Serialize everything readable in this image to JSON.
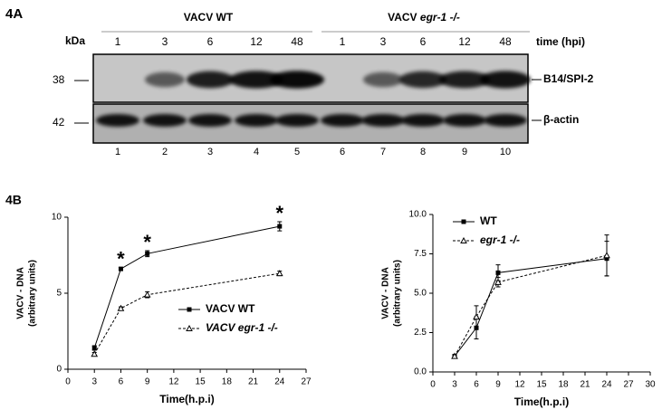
{
  "figure_a": {
    "panel": "4A",
    "kda_label": "kDa",
    "groups": [
      {
        "prefix": "VACV WT"
      },
      {
        "prefix": "VACV",
        "italic": "egr-1 -/-"
      }
    ],
    "times": [
      "1",
      "3",
      "6",
      "12",
      "48",
      "1",
      "3",
      "6",
      "12",
      "48"
    ],
    "time_label": "time (hpi)",
    "markers": [
      "38",
      "42"
    ],
    "bands": [
      "B14/SPI-2",
      "β-actin"
    ],
    "lanes": [
      "1",
      "2",
      "3",
      "4",
      "5",
      "6",
      "7",
      "8",
      "9",
      "10"
    ]
  },
  "panel_b": "4B",
  "chart_data": [
    {
      "type": "line",
      "xlabel": "Time(h.p.i)",
      "ylabel": [
        "VACV - DNA",
        "(arbitrary units)"
      ],
      "x": [
        3,
        6,
        9,
        24
      ],
      "xlim": [
        0,
        27
      ],
      "xticks": [
        0,
        3,
        6,
        9,
        12,
        15,
        18,
        21,
        24,
        27
      ],
      "ylim": [
        0,
        10
      ],
      "yticks": [
        0,
        5,
        10
      ],
      "legend": "center right",
      "series": [
        {
          "name": "VACV WT",
          "color": "#000000",
          "marker": "square",
          "dash": false,
          "values": [
            1.4,
            6.6,
            7.6,
            9.4
          ],
          "errors": [
            0.15,
            0.1,
            0.2,
            0.3
          ]
        },
        {
          "name": "VACV egr-1 -/-",
          "color": "#000000",
          "marker": "triangle",
          "dash": true,
          "values": [
            1.0,
            4.0,
            4.9,
            6.3
          ],
          "errors": [
            0.1,
            0.1,
            0.2,
            0.15
          ]
        }
      ],
      "annotations": [
        {
          "text": "*",
          "x": 6
        },
        {
          "text": "*",
          "x": 9
        },
        {
          "text": "*",
          "x": 24
        }
      ]
    },
    {
      "type": "line",
      "xlabel": "Time(h.p.i)",
      "ylabel": [
        "VACV - DNA",
        "(arbitrary units)"
      ],
      "x": [
        3,
        6,
        9,
        24
      ],
      "xlim": [
        0,
        30
      ],
      "xticks": [
        0,
        3,
        6,
        9,
        12,
        15,
        18,
        21,
        24,
        27,
        30
      ],
      "ylim": [
        0,
        10
      ],
      "yticks": [
        {
          "value": 0,
          "label": "0.0"
        },
        2.5,
        {
          "value": 5,
          "label": "5.0"
        },
        7.5,
        {
          "value": 10,
          "label": "10.0"
        }
      ],
      "legend": "upper left",
      "series": [
        {
          "name": "WT",
          "color": "#000000",
          "marker": "square",
          "dash": false,
          "values": [
            1.0,
            2.8,
            6.3,
            7.2
          ],
          "errors": [
            0.1,
            0.7,
            0.5,
            1.1
          ]
        },
        {
          "name": "egr-1 -/-",
          "color": "#000000",
          "marker": "triangle",
          "dash": true,
          "values": [
            1.0,
            3.5,
            5.7,
            7.4
          ],
          "errors": [
            0.1,
            0.7,
            0.3,
            1.3
          ]
        }
      ]
    }
  ]
}
